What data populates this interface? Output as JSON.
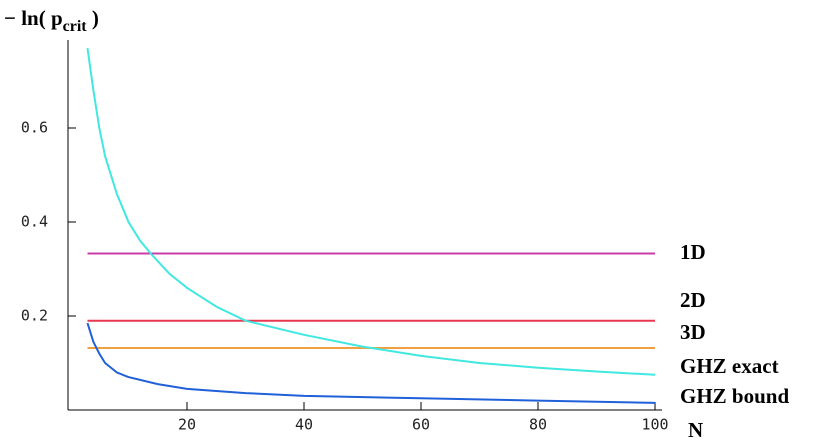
{
  "chart_data": {
    "type": "line",
    "ylabel": {
      "text": "− ln( p",
      "subscript": "crit",
      "close": " )"
    },
    "xlabel": "N",
    "xlim": [
      0,
      100
    ],
    "xticks": [
      20,
      40,
      60,
      80,
      100
    ],
    "ylim": [
      0,
      0.8
    ],
    "yticks": [
      0.2,
      0.4,
      0.6
    ],
    "series": [
      {
        "name": "1D",
        "color": "#c83ca8",
        "x": [
          3,
          100
        ],
        "values": [
          0.333,
          0.333
        ]
      },
      {
        "name": "2D",
        "color": "#e8384f",
        "x": [
          3,
          100
        ],
        "values": [
          0.19,
          0.19
        ]
      },
      {
        "name": "3D",
        "color": "#f0a040",
        "x": [
          3,
          100
        ],
        "values": [
          0.132,
          0.132
        ]
      },
      {
        "name": "GHZ exact",
        "color": "#40e8e0",
        "x": [
          3,
          4,
          5,
          6,
          8,
          10,
          12,
          14,
          17,
          20,
          25,
          30,
          40,
          50,
          60,
          70,
          80,
          90,
          100
        ],
        "values": [
          0.77,
          0.68,
          0.6,
          0.54,
          0.46,
          0.4,
          0.36,
          0.33,
          0.29,
          0.26,
          0.22,
          0.19,
          0.16,
          0.135,
          0.115,
          0.1,
          0.09,
          0.082,
          0.075
        ]
      },
      {
        "name": "GHZ bound",
        "color": "#2060d8",
        "x": [
          3,
          4,
          5,
          6,
          8,
          10,
          15,
          20,
          30,
          40,
          60,
          80,
          100
        ],
        "values": [
          0.185,
          0.145,
          0.12,
          0.1,
          0.08,
          0.07,
          0.055,
          0.045,
          0.036,
          0.03,
          0.025,
          0.02,
          0.015
        ]
      }
    ]
  }
}
